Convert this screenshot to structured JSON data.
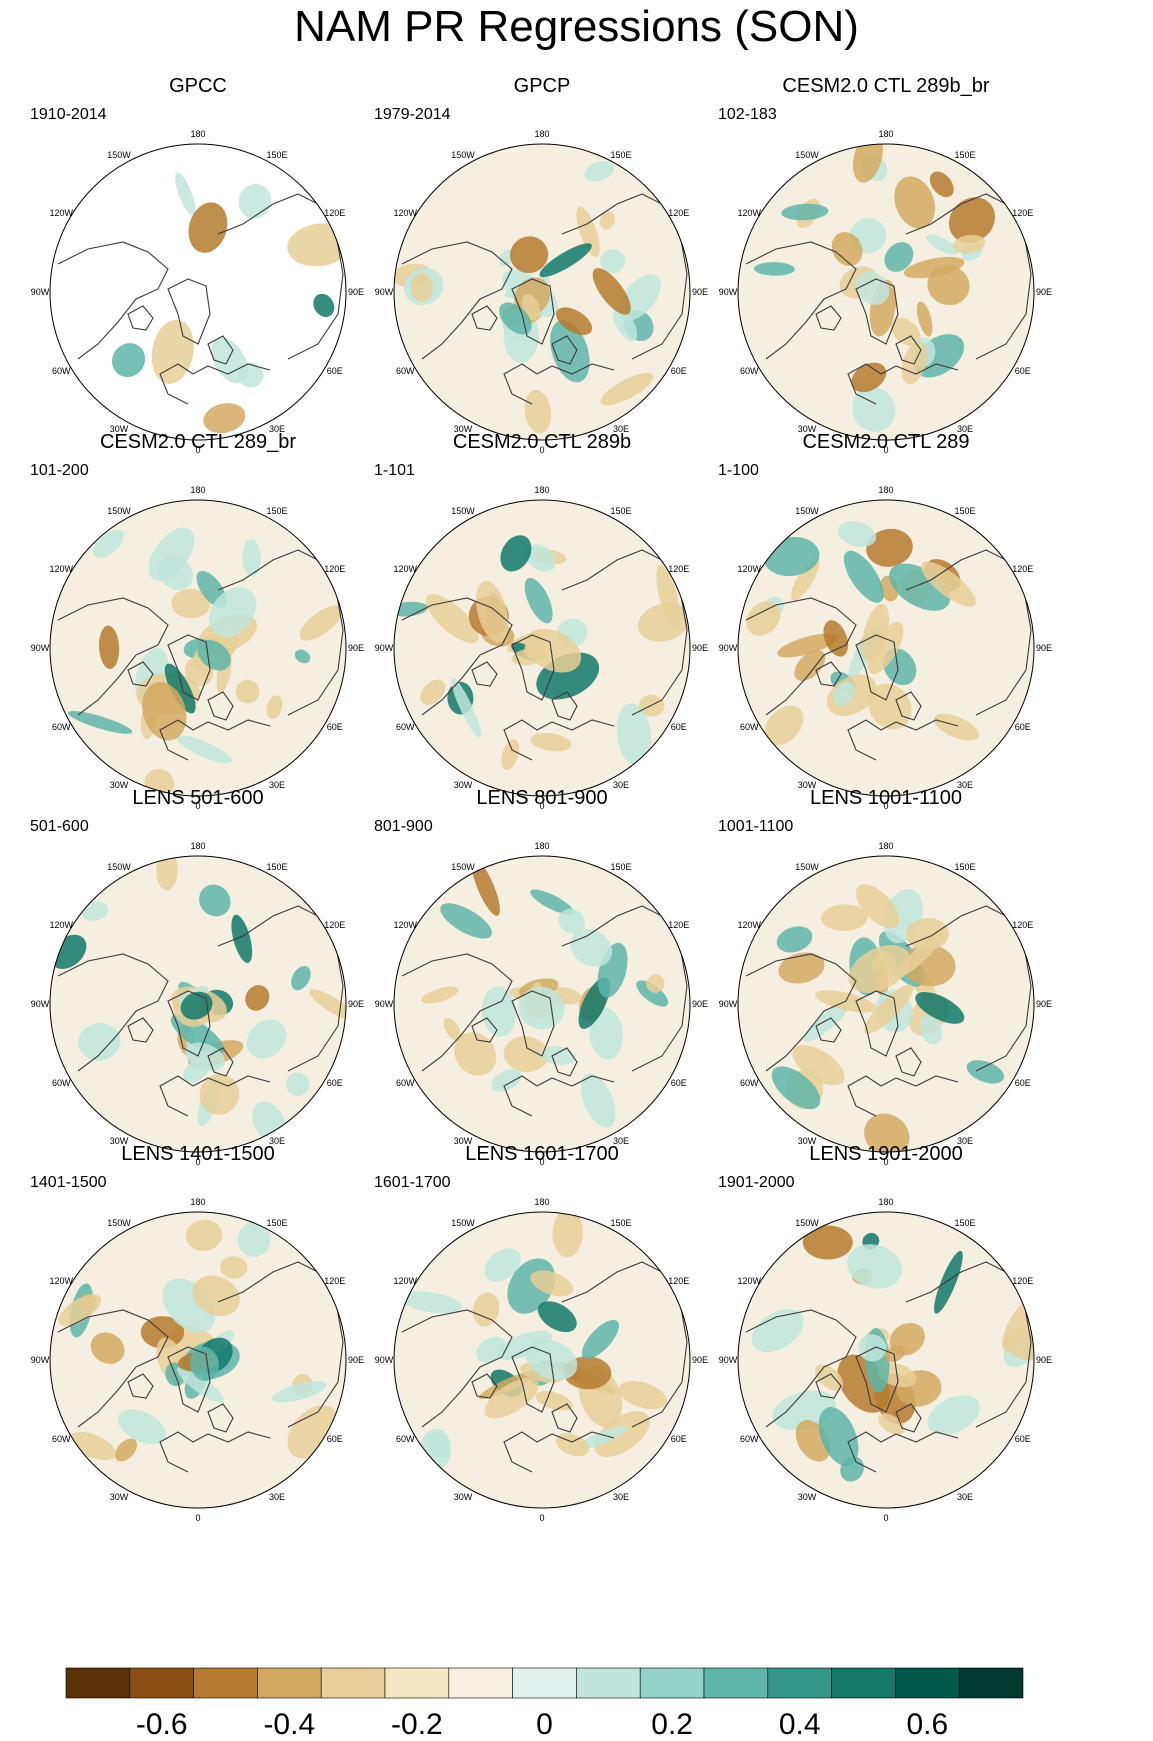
{
  "title": "NAM PR Regressions (SON)",
  "map_labels": [
    "180",
    "150E",
    "120E",
    "90E",
    "60E",
    "30E",
    "0",
    "30W",
    "60W",
    "90W",
    "120W",
    "150W"
  ],
  "panels": [
    {
      "title": "GPCC",
      "period": "1910-2014",
      "masked": true
    },
    {
      "title": "GPCP",
      "period": "1979-2014"
    },
    {
      "title": "CESM2.0 CTL 289b_br",
      "period": "102-183"
    },
    {
      "title": "CESM2.0 CTL 289_br",
      "period": "101-200"
    },
    {
      "title": "CESM2.0 CTL 289b",
      "period": "1-101"
    },
    {
      "title": "CESM2.0 CTL 289",
      "period": "1-100"
    },
    {
      "title": "LENS 501-600",
      "period": "501-600"
    },
    {
      "title": "LENS 801-900",
      "period": "801-900"
    },
    {
      "title": "LENS 1001-1100",
      "period": "1001-1100"
    },
    {
      "title": "LENS 1401-1500",
      "period": "1401-1500"
    },
    {
      "title": "LENS 1601-1700",
      "period": "1601-1700"
    },
    {
      "title": "LENS 1901-2000",
      "period": "1901-2000"
    }
  ],
  "colorbar": {
    "colors": [
      "#5b3208",
      "#8a4e12",
      "#b57a2e",
      "#d2a962",
      "#e8cf98",
      "#f5e6c4",
      "#f6f0e3",
      "#e2f1ee",
      "#bfe5dc",
      "#91d3c6",
      "#5fb5a8",
      "#32968a",
      "#127868",
      "#02594a",
      "#003a2e"
    ],
    "tick_labels": [
      "-0.6",
      "-0.4",
      "-0.2",
      "0",
      "0.2",
      "0.4",
      "0.6"
    ]
  }
}
